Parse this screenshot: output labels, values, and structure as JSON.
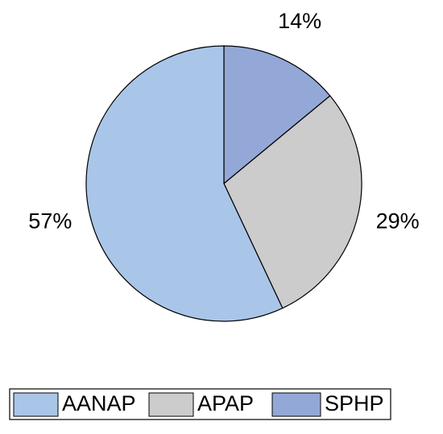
{
  "chart_data": {
    "type": "pie",
    "categories": [
      "AANAP",
      "APAP",
      "SPHP"
    ],
    "values": [
      57,
      29,
      14
    ],
    "value_labels": [
      "57%",
      "29%",
      "14%"
    ],
    "colors": [
      "#a9c6e8",
      "#cccccc",
      "#94a8d8"
    ],
    "legend": "bottom"
  }
}
